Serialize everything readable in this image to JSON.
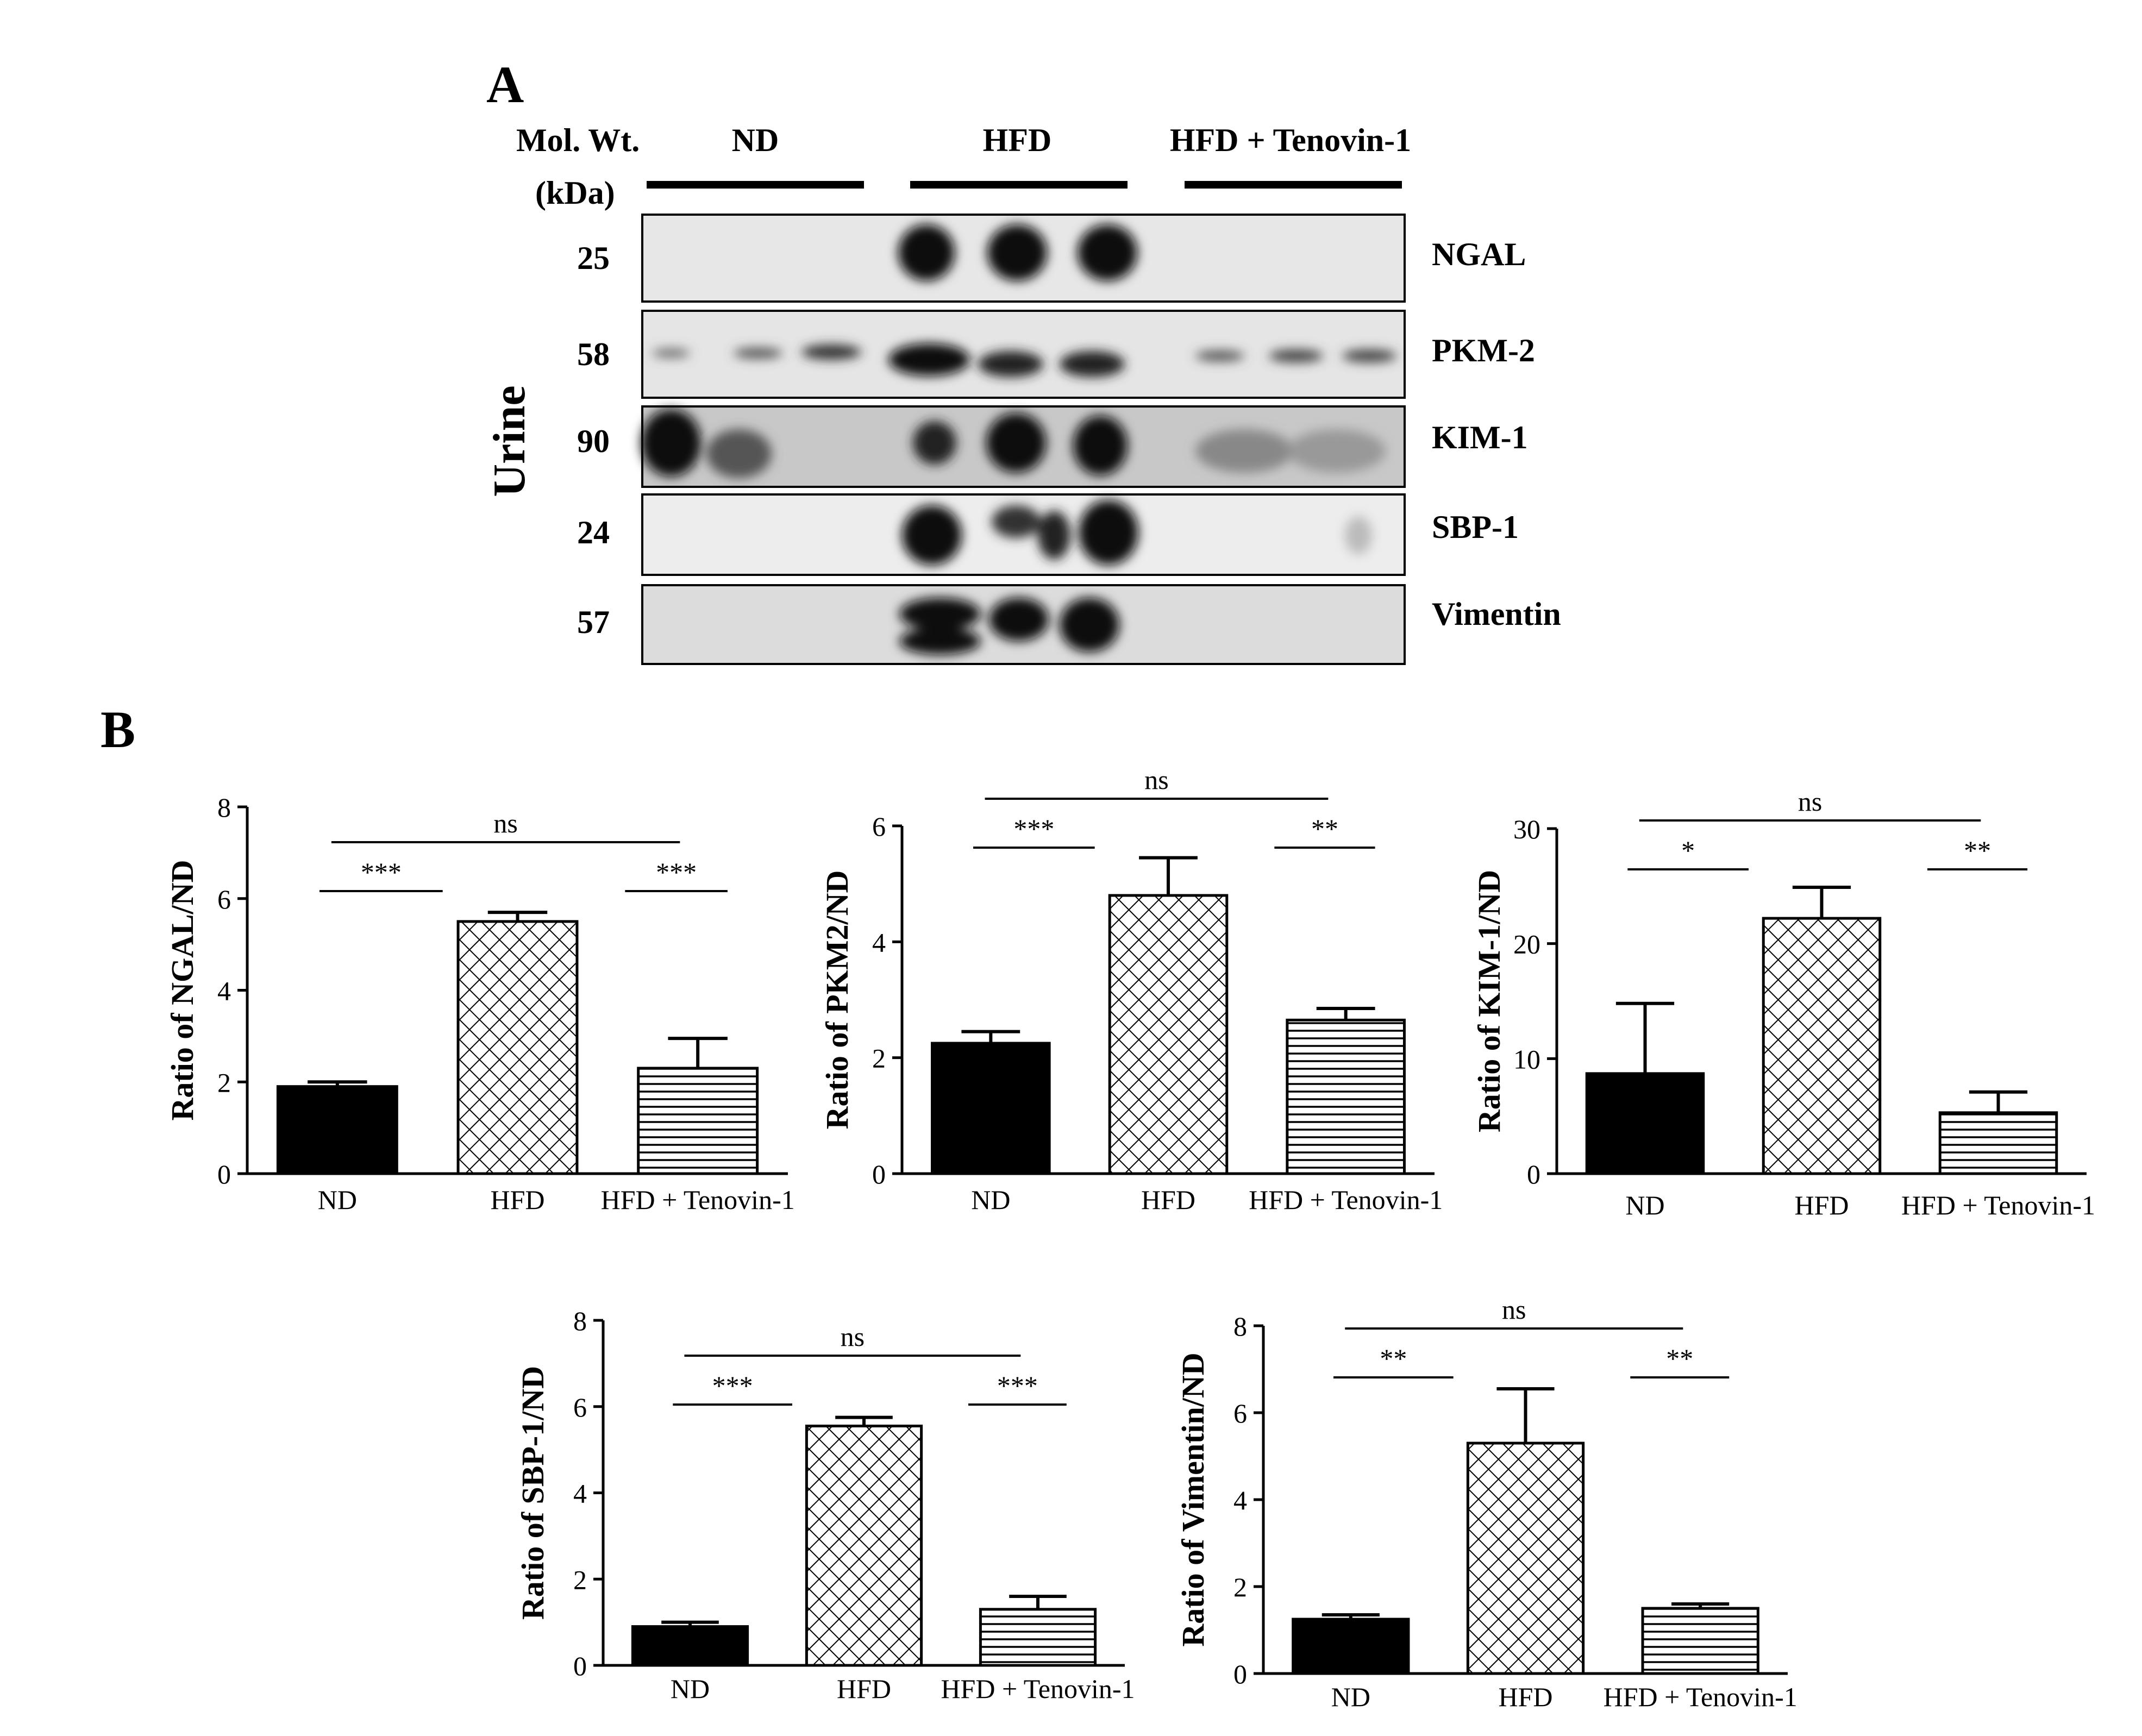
{
  "panel_a": {
    "letter": "A",
    "mw_header": [
      "Mol. Wt.",
      "(kDa)"
    ],
    "groups": [
      "ND",
      "HFD",
      "HFD + Tenovin-1"
    ],
    "sample_label": "Urine",
    "blots": [
      {
        "mw": "25",
        "protein": "NGAL"
      },
      {
        "mw": "58",
        "protein": "PKM-2"
      },
      {
        "mw": "90",
        "protein": "KIM-1"
      },
      {
        "mw": "24",
        "protein": "SBP-1"
      },
      {
        "mw": "57",
        "protein": "Vimentin"
      }
    ]
  },
  "panel_b": {
    "letter": "B"
  },
  "colors": {
    "ink": "#000000",
    "background": "#ffffff",
    "blot_bg": "#e6e6e6"
  },
  "chart_data": [
    {
      "type": "bar",
      "categories": [
        "ND",
        "HFD",
        "HFD + Tenovin-1"
      ],
      "values": [
        1.9,
        5.5,
        2.3
      ],
      "errors": [
        0.1,
        0.2,
        0.65
      ],
      "fills": [
        "solid",
        "crosshatch",
        "horizontal-lines"
      ],
      "ylabel": "Ratio of NGAL/ND",
      "ylim": [
        0,
        8
      ],
      "yticks": [
        0,
        2,
        4,
        6,
        8
      ],
      "significance": [
        {
          "from": 0,
          "to": 1,
          "label": "***"
        },
        {
          "from": 1,
          "to": 2,
          "label": "***"
        },
        {
          "from": 0,
          "to": 2,
          "label": "ns"
        }
      ]
    },
    {
      "type": "bar",
      "categories": [
        "ND",
        "HFD",
        "HFD + Tenovin-1"
      ],
      "values": [
        2.25,
        4.8,
        2.65
      ],
      "errors": [
        0.2,
        0.65,
        0.2
      ],
      "fills": [
        "solid",
        "crosshatch",
        "horizontal-lines"
      ],
      "ylabel": "Ratio of PKM2/ND",
      "ylim": [
        0,
        6
      ],
      "yticks": [
        0,
        2,
        4,
        6
      ],
      "significance": [
        {
          "from": 0,
          "to": 1,
          "label": "***"
        },
        {
          "from": 1,
          "to": 2,
          "label": "**"
        },
        {
          "from": 0,
          "to": 2,
          "label": "ns"
        }
      ]
    },
    {
      "type": "bar",
      "categories": [
        "ND",
        "HFD",
        "HFD + Tenovin-1"
      ],
      "values": [
        8.7,
        22.2,
        5.3
      ],
      "errors": [
        6.1,
        2.7,
        1.8
      ],
      "fills": [
        "solid",
        "crosshatch",
        "horizontal-lines"
      ],
      "ylabel": "Ratio of KIM-1/ND",
      "ylim": [
        0,
        30
      ],
      "yticks": [
        0,
        10,
        20,
        30
      ],
      "significance": [
        {
          "from": 0,
          "to": 1,
          "label": "*"
        },
        {
          "from": 1,
          "to": 2,
          "label": "**"
        },
        {
          "from": 0,
          "to": 2,
          "label": "ns"
        }
      ]
    },
    {
      "type": "bar",
      "categories": [
        "ND",
        "HFD",
        "HFD + Tenovin-1"
      ],
      "values": [
        0.9,
        5.55,
        1.3
      ],
      "errors": [
        0.1,
        0.2,
        0.3
      ],
      "fills": [
        "solid",
        "crosshatch",
        "horizontal-lines"
      ],
      "ylabel": "Ratio of SBP-1/ND",
      "ylim": [
        0,
        8
      ],
      "yticks": [
        0,
        2,
        4,
        6,
        8
      ],
      "significance": [
        {
          "from": 0,
          "to": 1,
          "label": "***"
        },
        {
          "from": 1,
          "to": 2,
          "label": "***"
        },
        {
          "from": 0,
          "to": 2,
          "label": "ns"
        }
      ]
    },
    {
      "type": "bar",
      "categories": [
        "ND",
        "HFD",
        "HFD + Tenovin-1"
      ],
      "values": [
        1.25,
        5.3,
        1.5
      ],
      "errors": [
        0.1,
        1.25,
        0.1
      ],
      "fills": [
        "solid",
        "crosshatch",
        "horizontal-lines"
      ],
      "ylabel": "Ratio of Vimentin/ND",
      "ylim": [
        0,
        8
      ],
      "yticks": [
        0,
        2,
        4,
        6,
        8
      ],
      "significance": [
        {
          "from": 0,
          "to": 1,
          "label": "**"
        },
        {
          "from": 1,
          "to": 2,
          "label": "**"
        },
        {
          "from": 0,
          "to": 2,
          "label": "ns"
        }
      ]
    }
  ]
}
